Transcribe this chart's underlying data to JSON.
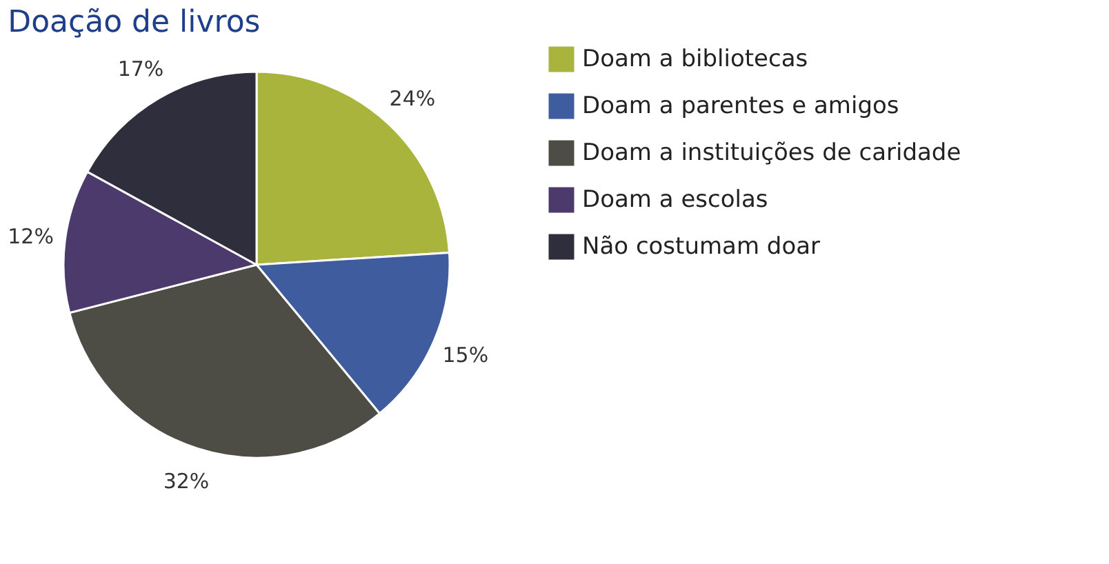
{
  "chart_data": {
    "type": "pie",
    "title": "Doação de livros",
    "categories": [
      "Doam a bibliotecas",
      "Doam a parentes e amigos",
      "Doam a instituições de caridade",
      "Doam a escolas",
      "Não costumam doar"
    ],
    "values": [
      24,
      15,
      32,
      12,
      17
    ],
    "colors": [
      "#a9b43c",
      "#3f5c9e",
      "#4d4c45",
      "#4b3a6b",
      "#2f2e3c"
    ],
    "value_labels": [
      "24%",
      "15%",
      "32%",
      "12%",
      "17%"
    ],
    "legend": "right"
  }
}
